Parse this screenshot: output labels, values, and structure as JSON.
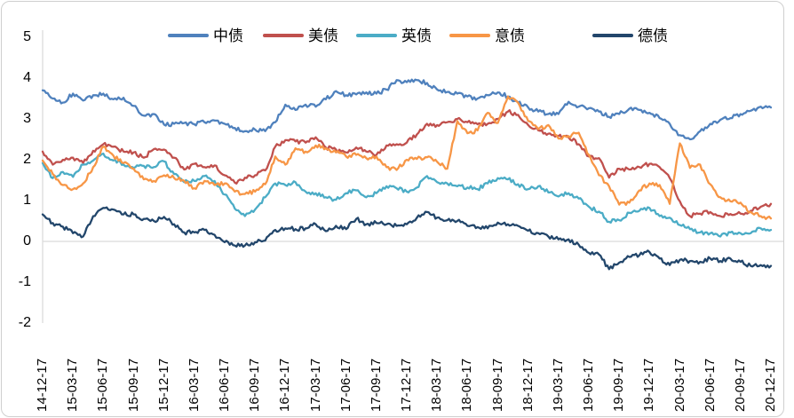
{
  "chart_data": {
    "type": "line",
    "title": "",
    "xlabel": "",
    "ylabel": "",
    "ylim": [
      -2,
      5
    ],
    "yticks": [
      5,
      4,
      3,
      2,
      1,
      0,
      -1,
      -2
    ],
    "grid": "zero-line-only",
    "legend_position": "top",
    "axis_line_color": "#d9d9d9",
    "zero_line_color": "#d9d9d9",
    "frame_border_color": "#cfcfcf",
    "x_tick_labels": [
      "14-12-17",
      "15-03-17",
      "15-06-17",
      "15-09-17",
      "15-12-17",
      "16-03-17",
      "16-06-17",
      "16-09-17",
      "16-12-17",
      "17-03-17",
      "17-06-17",
      "17-09-17",
      "17-12-17",
      "18-03-17",
      "18-06-17",
      "18-09-17",
      "18-12-17",
      "19-03-17",
      "19-06-17",
      "19-09-17",
      "19-12-17",
      "20-03-17",
      "20-06-17",
      "20-09-17",
      "20-12-17"
    ],
    "x_unit": "monthly points from 2014-12-17 to 2020-12-17, tick every 3 months",
    "series": [
      {
        "name": "中债",
        "color": "#4F81BD",
        "values": [
          3.7,
          3.5,
          3.4,
          3.62,
          3.45,
          3.58,
          3.62,
          3.48,
          3.52,
          3.32,
          3.08,
          3.12,
          2.86,
          2.88,
          2.9,
          2.87,
          2.92,
          2.96,
          2.88,
          2.78,
          2.7,
          2.74,
          2.7,
          2.92,
          3.35,
          3.22,
          3.35,
          3.3,
          3.48,
          3.68,
          3.58,
          3.6,
          3.65,
          3.62,
          3.72,
          3.95,
          3.9,
          3.95,
          3.88,
          3.72,
          3.66,
          3.62,
          3.55,
          3.5,
          3.58,
          3.65,
          3.55,
          3.4,
          3.28,
          3.18,
          3.12,
          3.12,
          3.42,
          3.3,
          3.26,
          3.18,
          3.05,
          3.12,
          3.25,
          3.22,
          3.15,
          3.02,
          2.88,
          2.6,
          2.5,
          2.7,
          2.88,
          2.98,
          3.02,
          3.12,
          3.2,
          3.3,
          3.28
        ]
      },
      {
        "name": "美债",
        "color": "#C0504D",
        "values": [
          2.2,
          1.88,
          2.0,
          2.05,
          1.92,
          2.22,
          2.38,
          2.32,
          2.2,
          2.18,
          2.05,
          2.26,
          2.25,
          2.05,
          1.76,
          1.9,
          1.82,
          1.86,
          1.62,
          1.44,
          1.56,
          1.62,
          1.74,
          2.32,
          2.48,
          2.45,
          2.42,
          2.55,
          2.3,
          2.25,
          2.18,
          2.3,
          2.2,
          2.12,
          2.35,
          2.38,
          2.42,
          2.62,
          2.88,
          2.85,
          2.92,
          3.0,
          2.92,
          2.87,
          2.88,
          3.0,
          3.18,
          3.1,
          2.85,
          2.72,
          2.64,
          2.58,
          2.55,
          2.38,
          2.08,
          2.04,
          1.56,
          1.78,
          1.76,
          1.82,
          1.9,
          1.82,
          1.55,
          0.98,
          0.62,
          0.68,
          0.72,
          0.62,
          0.67,
          0.68,
          0.75,
          0.85,
          0.92
        ]
      },
      {
        "name": "英债",
        "color": "#4BACC6",
        "values": [
          1.92,
          1.55,
          1.7,
          1.58,
          1.88,
          1.98,
          2.15,
          1.98,
          1.88,
          1.8,
          1.85,
          1.82,
          1.96,
          1.65,
          1.45,
          1.48,
          1.6,
          1.48,
          1.15,
          0.8,
          0.62,
          0.78,
          1.08,
          1.42,
          1.38,
          1.45,
          1.22,
          1.18,
          1.08,
          1.02,
          1.18,
          1.25,
          1.08,
          1.18,
          1.35,
          1.3,
          1.22,
          1.32,
          1.6,
          1.45,
          1.42,
          1.35,
          1.32,
          1.28,
          1.42,
          1.55,
          1.52,
          1.4,
          1.28,
          1.35,
          1.2,
          1.1,
          1.18,
          1.05,
          0.85,
          0.73,
          0.48,
          0.52,
          0.7,
          0.75,
          0.82,
          0.62,
          0.58,
          0.4,
          0.3,
          0.22,
          0.2,
          0.12,
          0.22,
          0.2,
          0.2,
          0.32,
          0.28
        ]
      },
      {
        "name": "意债",
        "color": "#F79646",
        "values": [
          1.98,
          1.65,
          1.38,
          1.28,
          1.42,
          1.82,
          2.32,
          2.1,
          1.92,
          1.78,
          1.52,
          1.48,
          1.62,
          1.55,
          1.48,
          1.3,
          1.48,
          1.38,
          1.42,
          1.22,
          1.16,
          1.22,
          1.4,
          2.08,
          1.88,
          2.28,
          2.2,
          2.35,
          2.28,
          2.18,
          2.08,
          2.12,
          2.04,
          2.08,
          1.82,
          1.75,
          2.0,
          2.02,
          2.06,
          1.95,
          1.78,
          2.95,
          2.65,
          2.72,
          3.15,
          2.9,
          3.55,
          3.4,
          2.95,
          2.75,
          2.85,
          2.52,
          2.58,
          2.66,
          2.12,
          1.62,
          1.35,
          0.9,
          0.95,
          1.25,
          1.42,
          1.38,
          0.92,
          2.4,
          1.8,
          1.88,
          1.4,
          1.08,
          0.98,
          0.95,
          0.72,
          0.62,
          0.56
        ]
      },
      {
        "name": "德债",
        "color": "#22466B",
        "values": [
          0.66,
          0.45,
          0.36,
          0.2,
          0.12,
          0.62,
          0.82,
          0.78,
          0.66,
          0.66,
          0.55,
          0.5,
          0.6,
          0.42,
          0.22,
          0.22,
          0.28,
          0.16,
          -0.02,
          -0.1,
          -0.1,
          -0.02,
          0.02,
          0.28,
          0.32,
          0.3,
          0.32,
          0.42,
          0.25,
          0.38,
          0.3,
          0.55,
          0.42,
          0.45,
          0.42,
          0.38,
          0.42,
          0.58,
          0.72,
          0.58,
          0.52,
          0.5,
          0.38,
          0.35,
          0.32,
          0.46,
          0.42,
          0.38,
          0.26,
          0.2,
          0.12,
          0.05,
          0.05,
          -0.08,
          -0.28,
          -0.32,
          -0.68,
          -0.52,
          -0.38,
          -0.34,
          -0.26,
          -0.42,
          -0.58,
          -0.45,
          -0.48,
          -0.5,
          -0.42,
          -0.48,
          -0.42,
          -0.5,
          -0.6,
          -0.58,
          -0.6
        ]
      }
    ]
  }
}
